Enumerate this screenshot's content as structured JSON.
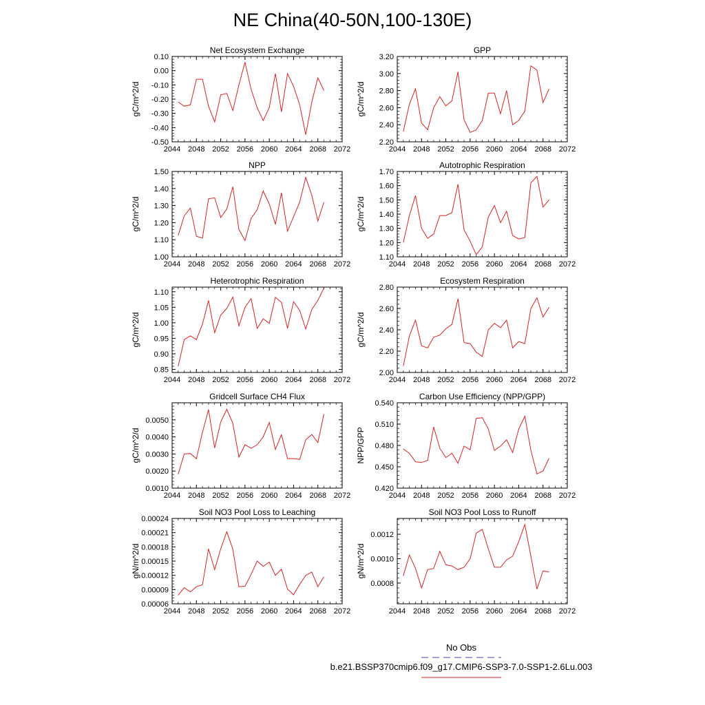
{
  "figure_title": "NE China(40-50N,100-130E)",
  "legend": {
    "entries": [
      {
        "label": "No Obs",
        "color": "#4040c0",
        "style": "dashed"
      },
      {
        "label": "b.e21.BSSP370cmip6.f09_g17.CMIP6-SSP3-7.0-SSP1-2.6Lu.003",
        "color": "#e02020",
        "style": "solid"
      }
    ]
  },
  "chart_data": [
    {
      "type": "line",
      "title": "Net Ecosystem Exchange",
      "xlabel": "",
      "ylabel": "gC/m^2/d",
      "xlim": [
        2044,
        2072
      ],
      "xticks": [
        2044,
        2048,
        2052,
        2056,
        2060,
        2064,
        2068,
        2072
      ],
      "ylim": [
        -0.5,
        0.1
      ],
      "yticks": [
        -0.5,
        -0.4,
        -0.3,
        -0.2,
        -0.1,
        0.0,
        0.1
      ],
      "ydecimals": 2,
      "ygrid": false,
      "color": "#e02020",
      "x": [
        2045,
        2046,
        2047,
        2048,
        2049,
        2050,
        2051,
        2052,
        2053,
        2054,
        2055,
        2056,
        2057,
        2058,
        2059,
        2060,
        2061,
        2062,
        2063,
        2064,
        2065,
        2066,
        2067,
        2068,
        2069
      ],
      "y": [
        -0.22,
        -0.25,
        -0.24,
        -0.06,
        -0.06,
        -0.25,
        -0.36,
        -0.17,
        -0.16,
        -0.28,
        -0.1,
        0.06,
        -0.13,
        -0.26,
        -0.35,
        -0.26,
        -0.02,
        -0.29,
        -0.02,
        -0.11,
        -0.24,
        -0.45,
        -0.22,
        -0.05,
        -0.14
      ]
    },
    {
      "type": "line",
      "title": "GPP",
      "xlabel": "",
      "ylabel": "gC/m^2/d",
      "xlim": [
        2044,
        2072
      ],
      "xticks": [
        2044,
        2048,
        2052,
        2056,
        2060,
        2064,
        2068,
        2072
      ],
      "ylim": [
        2.2,
        3.2
      ],
      "yticks": [
        2.2,
        2.4,
        2.6,
        2.8,
        3.0,
        3.2
      ],
      "ydecimals": 2,
      "ygrid": false,
      "color": "#e02020",
      "x": [
        2045,
        2046,
        2047,
        2048,
        2049,
        2050,
        2051,
        2052,
        2053,
        2054,
        2055,
        2056,
        2057,
        2058,
        2059,
        2060,
        2061,
        2062,
        2063,
        2064,
        2065,
        2066,
        2067,
        2068,
        2069
      ],
      "y": [
        2.32,
        2.64,
        2.82,
        2.42,
        2.34,
        2.6,
        2.73,
        2.62,
        2.68,
        3.02,
        2.46,
        2.31,
        2.34,
        2.45,
        2.77,
        2.77,
        2.53,
        2.8,
        2.4,
        2.45,
        2.56,
        3.09,
        3.04,
        2.66,
        2.82
      ]
    },
    {
      "type": "line",
      "title": "NPP",
      "xlabel": "",
      "ylabel": "gC/m^2/d",
      "xlim": [
        2044,
        2072
      ],
      "xticks": [
        2044,
        2048,
        2052,
        2056,
        2060,
        2064,
        2068,
        2072
      ],
      "ylim": [
        1.0,
        1.5
      ],
      "yticks": [
        1.0,
        1.1,
        1.2,
        1.3,
        1.4,
        1.5
      ],
      "ydecimals": 2,
      "ygrid": false,
      "color": "#e02020",
      "x": [
        2045,
        2046,
        2047,
        2048,
        2049,
        2050,
        2051,
        2052,
        2053,
        2054,
        2055,
        2056,
        2057,
        2058,
        2059,
        2060,
        2061,
        2062,
        2063,
        2064,
        2065,
        2066,
        2067,
        2068,
        2069
      ],
      "y": [
        1.125,
        1.24,
        1.285,
        1.12,
        1.11,
        1.34,
        1.345,
        1.23,
        1.28,
        1.41,
        1.16,
        1.095,
        1.225,
        1.275,
        1.385,
        1.31,
        1.19,
        1.375,
        1.15,
        1.235,
        1.32,
        1.465,
        1.36,
        1.21,
        1.32
      ]
    },
    {
      "type": "line",
      "title": "Autotrophic Respiration",
      "xlabel": "",
      "ylabel": "gC/m^2/d",
      "xlim": [
        2044,
        2072
      ],
      "xticks": [
        2044,
        2048,
        2052,
        2056,
        2060,
        2064,
        2068,
        2072
      ],
      "ylim": [
        1.1,
        1.7
      ],
      "yticks": [
        1.1,
        1.2,
        1.3,
        1.4,
        1.5,
        1.6,
        1.7
      ],
      "ydecimals": 2,
      "ygrid": false,
      "color": "#e02020",
      "x": [
        2045,
        2046,
        2047,
        2048,
        2049,
        2050,
        2051,
        2052,
        2053,
        2054,
        2055,
        2056,
        2057,
        2058,
        2059,
        2060,
        2061,
        2062,
        2063,
        2064,
        2065,
        2066,
        2067,
        2068,
        2069
      ],
      "y": [
        1.2,
        1.39,
        1.53,
        1.3,
        1.23,
        1.26,
        1.39,
        1.39,
        1.41,
        1.61,
        1.29,
        1.21,
        1.115,
        1.17,
        1.38,
        1.46,
        1.34,
        1.42,
        1.25,
        1.225,
        1.235,
        1.62,
        1.665,
        1.45,
        1.5
      ]
    },
    {
      "type": "line",
      "title": "Heterotrophic Respiration",
      "xlabel": "",
      "ylabel": "gC/m^2/d",
      "xlim": [
        2044,
        2072
      ],
      "xticks": [
        2044,
        2048,
        2052,
        2056,
        2060,
        2064,
        2068,
        2072
      ],
      "ylim": [
        0.84,
        1.115
      ],
      "yticks": [
        0.85,
        0.9,
        0.95,
        1.0,
        1.05,
        1.1
      ],
      "ydecimals": 2,
      "ygrid": false,
      "color": "#e02020",
      "x": [
        2045,
        2046,
        2047,
        2048,
        2049,
        2050,
        2051,
        2052,
        2053,
        2054,
        2055,
        2056,
        2057,
        2058,
        2059,
        2060,
        2061,
        2062,
        2063,
        2064,
        2065,
        2066,
        2067,
        2068,
        2069
      ],
      "y": [
        0.86,
        0.946,
        0.958,
        0.946,
        0.996,
        1.072,
        0.968,
        1.025,
        1.046,
        1.083,
        0.99,
        1.05,
        1.078,
        0.982,
        1.013,
        0.998,
        1.082,
        1.066,
        0.982,
        1.068,
        1.04,
        0.98,
        1.043,
        1.072,
        1.112
      ]
    },
    {
      "type": "line",
      "title": "Ecosystem Respiration",
      "xlabel": "",
      "ylabel": "gC/m^2/d",
      "xlim": [
        2044,
        2072
      ],
      "xticks": [
        2044,
        2048,
        2052,
        2056,
        2060,
        2064,
        2068,
        2072
      ],
      "ylim": [
        2.0,
        2.8
      ],
      "yticks": [
        2.0,
        2.2,
        2.4,
        2.6,
        2.8
      ],
      "ydecimals": 2,
      "ygrid": false,
      "color": "#e02020",
      "x": [
        2045,
        2046,
        2047,
        2048,
        2049,
        2050,
        2051,
        2052,
        2053,
        2054,
        2055,
        2056,
        2057,
        2058,
        2059,
        2060,
        2061,
        2062,
        2063,
        2064,
        2065,
        2066,
        2067,
        2068,
        2069
      ],
      "y": [
        2.06,
        2.34,
        2.49,
        2.25,
        2.23,
        2.33,
        2.35,
        2.41,
        2.45,
        2.69,
        2.28,
        2.27,
        2.19,
        2.15,
        2.4,
        2.46,
        2.42,
        2.49,
        2.23,
        2.29,
        2.27,
        2.6,
        2.7,
        2.52,
        2.61
      ]
    },
    {
      "type": "line",
      "title": "Gridcell Surface CH4 Flux",
      "xlabel": "",
      "ylabel": "gC/m^2/d",
      "xlim": [
        2044,
        2072
      ],
      "xticks": [
        2044,
        2048,
        2052,
        2056,
        2060,
        2064,
        2068,
        2072
      ],
      "ylim": [
        0.001,
        0.006
      ],
      "yticks": [
        0.001,
        0.002,
        0.003,
        0.004,
        0.005
      ],
      "ydecimals": 4,
      "ygrid": false,
      "color": "#e02020",
      "x": [
        2045,
        2046,
        2047,
        2048,
        2049,
        2050,
        2051,
        2052,
        2053,
        2054,
        2055,
        2056,
        2057,
        2058,
        2059,
        2060,
        2061,
        2062,
        2063,
        2064,
        2065,
        2066,
        2067,
        2068,
        2069
      ],
      "y": [
        0.00182,
        0.003,
        0.00303,
        0.00272,
        0.00428,
        0.0056,
        0.00335,
        0.00487,
        0.00562,
        0.00479,
        0.00282,
        0.00354,
        0.00334,
        0.00354,
        0.004,
        0.00485,
        0.00327,
        0.00413,
        0.00273,
        0.00273,
        0.00268,
        0.00383,
        0.00414,
        0.00367,
        0.00534
      ]
    },
    {
      "type": "line",
      "title": "Carbon Use Efficiency (NPP/GPP)",
      "xlabel": "",
      "ylabel": "NPP/GPP",
      "xlim": [
        2044,
        2072
      ],
      "xticks": [
        2044,
        2048,
        2052,
        2056,
        2060,
        2064,
        2068,
        2072
      ],
      "ylim": [
        0.42,
        0.54
      ],
      "yticks": [
        0.42,
        0.45,
        0.48,
        0.51,
        0.54
      ],
      "ydecimals": 3,
      "ygrid": false,
      "color": "#e02020",
      "x": [
        2045,
        2046,
        2047,
        2048,
        2049,
        2050,
        2051,
        2052,
        2053,
        2054,
        2055,
        2056,
        2057,
        2058,
        2059,
        2060,
        2061,
        2062,
        2063,
        2064,
        2065,
        2066,
        2067,
        2068,
        2069
      ],
      "y": [
        0.475,
        0.469,
        0.457,
        0.456,
        0.459,
        0.506,
        0.476,
        0.463,
        0.469,
        0.455,
        0.479,
        0.474,
        0.518,
        0.519,
        0.503,
        0.473,
        0.479,
        0.488,
        0.47,
        0.503,
        0.521,
        0.473,
        0.44,
        0.444,
        0.462
      ]
    },
    {
      "type": "line",
      "title": "Soil NO3 Pool Loss to Leaching",
      "xlabel": "",
      "ylabel": "gN/m^2/d",
      "xlim": [
        2044,
        2072
      ],
      "xticks": [
        2044,
        2048,
        2052,
        2056,
        2060,
        2064,
        2068,
        2072
      ],
      "ylim": [
        6e-05,
        0.00024
      ],
      "yticks": [
        6e-05,
        9e-05,
        0.00012,
        0.00015,
        0.00018,
        0.00021,
        0.00024
      ],
      "ydecimals": 5,
      "ygrid": false,
      "color": "#e02020",
      "x": [
        2045,
        2046,
        2047,
        2048,
        2049,
        2050,
        2051,
        2052,
        2053,
        2054,
        2055,
        2056,
        2057,
        2058,
        2059,
        2060,
        2061,
        2062,
        2063,
        2064,
        2065,
        2066,
        2067,
        2068,
        2069
      ],
      "y": [
        7.8e-05,
        9.4e-05,
        8.5e-05,
        9.6e-05,
        0.0001,
        0.000176,
        0.000132,
        0.000176,
        0.000212,
        0.000175,
        9.6e-05,
        9.7e-05,
        0.000122,
        0.00015,
        0.000139,
        0.000148,
        0.00012,
        0.000133,
        9.1e-05,
        7.9e-05,
        0.000101,
        0.00012,
        0.000127,
        9.6e-05,
        0.000117
      ]
    },
    {
      "type": "line",
      "title": "Soil NO3 Pool Loss to Runoff",
      "xlabel": "",
      "ylabel": "gN/m^2/d",
      "xlim": [
        2044,
        2072
      ],
      "xticks": [
        2044,
        2048,
        2052,
        2056,
        2060,
        2064,
        2068,
        2072
      ],
      "ylim": [
        0.00063,
        0.00133
      ],
      "yticks": [
        0.0008,
        0.001,
        0.0012
      ],
      "ydecimals": 4,
      "ygrid": false,
      "color": "#e02020",
      "x": [
        2045,
        2046,
        2047,
        2048,
        2049,
        2050,
        2051,
        2052,
        2053,
        2054,
        2055,
        2056,
        2057,
        2058,
        2059,
        2060,
        2061,
        2062,
        2063,
        2064,
        2065,
        2066,
        2067,
        2068,
        2069
      ],
      "y": [
        0.00086,
        0.00103,
        0.00092,
        0.00076,
        0.00091,
        0.00092,
        0.00106,
        0.00095,
        0.00094,
        0.00091,
        0.00093,
        0.001,
        0.00121,
        0.00124,
        0.00108,
        0.00093,
        0.00093,
        0.00099,
        0.00102,
        0.00114,
        0.00128,
        0.00102,
        0.00075,
        0.0009,
        0.00089
      ]
    }
  ]
}
